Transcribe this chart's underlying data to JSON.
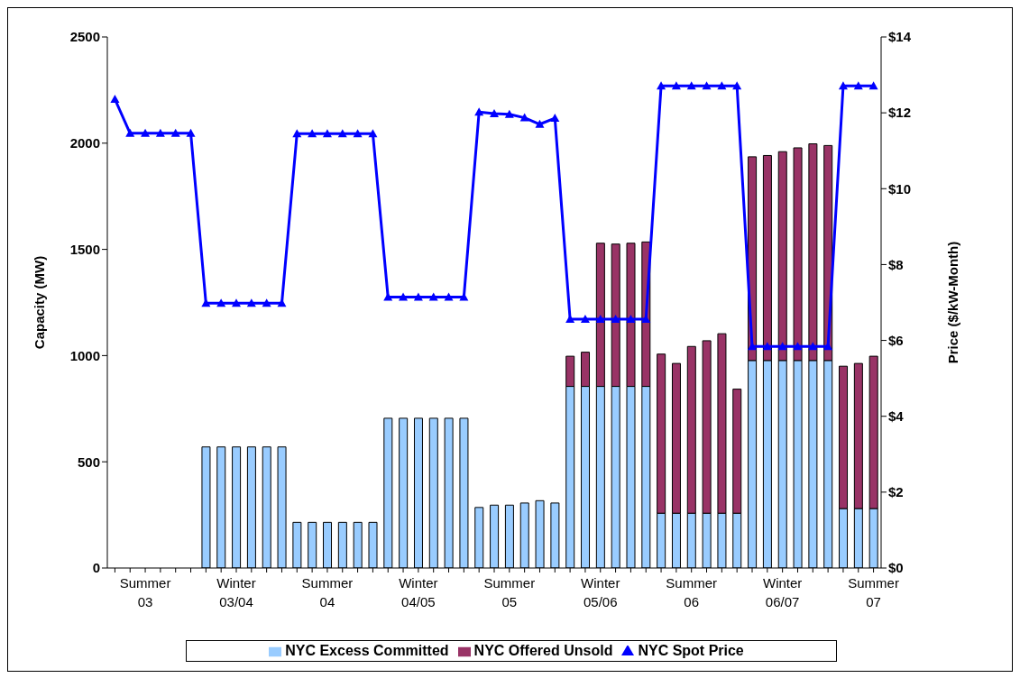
{
  "chart_data": {
    "type": "bar",
    "stacked": true,
    "categories": [
      null,
      null,
      "Summer 03",
      null,
      null,
      null,
      null,
      null,
      "Winter 03/04",
      null,
      null,
      null,
      null,
      null,
      "Summer 04",
      null,
      null,
      null,
      null,
      null,
      "Winter 04/05",
      null,
      null,
      null,
      null,
      null,
      "Summer 05",
      null,
      null,
      null,
      null,
      null,
      "Winter 05/06",
      null,
      null,
      null,
      null,
      null,
      "Summer 06",
      null,
      null,
      null,
      null,
      null,
      "Winter 06/07",
      null,
      null,
      null,
      null,
      null,
      "Summer 07"
    ],
    "series": [
      {
        "name": "NYC Excess Committed",
        "color": "#99ccff",
        "values": [
          null,
          null,
          null,
          null,
          null,
          null,
          570,
          570,
          570,
          570,
          570,
          570,
          215,
          215,
          215,
          215,
          215,
          215,
          705,
          705,
          705,
          705,
          705,
          705,
          285,
          296,
          296,
          306,
          317,
          306,
          855,
          855,
          855,
          855,
          855,
          855,
          258,
          258,
          258,
          258,
          258,
          258,
          977,
          977,
          977,
          977,
          977,
          977,
          280,
          280,
          280
        ]
      },
      {
        "name": "NYC Offered Unsold",
        "color": "#993366",
        "values": [
          null,
          null,
          null,
          null,
          null,
          null,
          null,
          null,
          null,
          null,
          null,
          null,
          null,
          null,
          null,
          null,
          null,
          null,
          null,
          null,
          null,
          null,
          null,
          null,
          null,
          null,
          null,
          null,
          null,
          null,
          142,
          161,
          674,
          670,
          674,
          680,
          749,
          705,
          785,
          812,
          845,
          584,
          959,
          965,
          983,
          1001,
          1020,
          1012,
          670,
          683,
          717
        ]
      },
      {
        "name": "NYC Spot Price",
        "type": "line",
        "axis": "y2",
        "color": "#0000ff",
        "marker": "triangle",
        "values": [
          12.36,
          11.46,
          11.46,
          11.46,
          11.46,
          11.46,
          6.98,
          6.98,
          6.98,
          6.98,
          6.98,
          6.98,
          11.45,
          11.45,
          11.45,
          11.45,
          11.45,
          11.45,
          7.14,
          7.14,
          7.14,
          7.14,
          7.14,
          7.14,
          12.02,
          11.98,
          11.96,
          11.87,
          11.7,
          11.86,
          6.56,
          6.56,
          6.56,
          6.56,
          6.56,
          6.56,
          12.71,
          12.71,
          12.71,
          12.71,
          12.71,
          12.71,
          5.84,
          5.84,
          5.84,
          5.84,
          5.84,
          5.84,
          12.71,
          12.71,
          12.71
        ]
      }
    ],
    "ylabel": "Capacity (MW)",
    "y2label": "Price ($/kW-Month)",
    "ylim": [
      0,
      2500
    ],
    "yticks": [
      0,
      500,
      1000,
      1500,
      2000,
      2500
    ],
    "y2lim": [
      0,
      14
    ],
    "y2ticks": [
      {
        "value": 0,
        "label": "$0"
      },
      {
        "value": 2,
        "label": "$2"
      },
      {
        "value": 4,
        "label": "$4"
      },
      {
        "value": 6,
        "label": "$6"
      },
      {
        "value": 8,
        "label": "$8"
      },
      {
        "value": 10,
        "label": "$10"
      },
      {
        "value": 12,
        "label": "$12"
      },
      {
        "value": 14,
        "label": "$14"
      }
    ],
    "legend": "bottom"
  }
}
